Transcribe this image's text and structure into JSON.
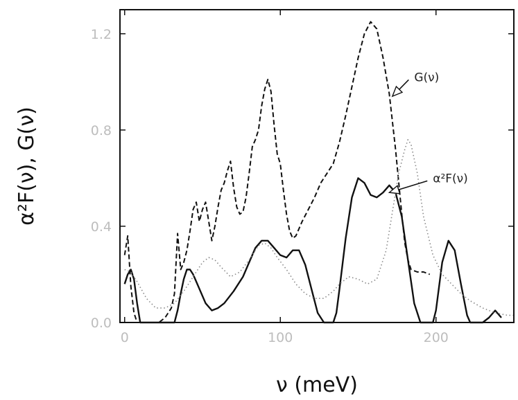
{
  "chart_data": {
    "type": "line",
    "title": "",
    "xlabel": "ν (meV)",
    "ylabel": "α²F(ν), G(ν)",
    "xlim": [
      -3,
      250
    ],
    "ylim": [
      0,
      1.3
    ],
    "x_ticks": [
      0,
      100,
      200
    ],
    "y_ticks": [
      0.0,
      0.4,
      0.8,
      1.2
    ],
    "x_tick_labels": [
      "0",
      "100",
      "200"
    ],
    "y_tick_labels": [
      "0.0",
      "0.4",
      "0.8",
      "1.2"
    ],
    "grid": false,
    "legend": "none",
    "annotations": [
      {
        "text": "G(ν)",
        "series": "G(ν)",
        "x": 186,
        "y": 1.02,
        "arrow_to": [
          172,
          0.94
        ]
      },
      {
        "text": "α²F(ν)",
        "series": "α²F(ν)",
        "x": 198,
        "y": 0.6,
        "arrow_to": [
          170,
          0.54
        ]
      }
    ],
    "series": [
      {
        "name": "G(ν)",
        "style": "dashed",
        "color": "#111111",
        "x": [
          0,
          2,
          4,
          6,
          8,
          10,
          14,
          18,
          22,
          26,
          30,
          32,
          34,
          36,
          38,
          40,
          42,
          44,
          46,
          48,
          50,
          52,
          54,
          56,
          58,
          60,
          62,
          64,
          66,
          68,
          70,
          72,
          74,
          76,
          78,
          80,
          82,
          84,
          86,
          88,
          90,
          92,
          94,
          96,
          98,
          100,
          102,
          104,
          106,
          108,
          110,
          114,
          118,
          122,
          126,
          130,
          134,
          138,
          142,
          146,
          150,
          154,
          158,
          162,
          166,
          170,
          174,
          178,
          180,
          182,
          184,
          188,
          192,
          196
        ],
        "y": [
          0.28,
          0.36,
          0.15,
          0.04,
          0.0,
          0.0,
          0.0,
          0.0,
          0.0,
          0.02,
          0.06,
          0.12,
          0.37,
          0.22,
          0.25,
          0.3,
          0.38,
          0.47,
          0.5,
          0.42,
          0.47,
          0.5,
          0.42,
          0.34,
          0.4,
          0.48,
          0.55,
          0.58,
          0.63,
          0.67,
          0.56,
          0.48,
          0.45,
          0.46,
          0.52,
          0.62,
          0.73,
          0.76,
          0.8,
          0.9,
          0.97,
          1.01,
          0.96,
          0.82,
          0.7,
          0.66,
          0.55,
          0.45,
          0.38,
          0.35,
          0.36,
          0.42,
          0.47,
          0.52,
          0.58,
          0.62,
          0.66,
          0.75,
          0.86,
          0.98,
          1.1,
          1.2,
          1.25,
          1.22,
          1.1,
          0.95,
          0.72,
          0.45,
          0.33,
          0.26,
          0.22,
          0.21,
          0.21,
          0.2
        ]
      },
      {
        "name": "α²F(ν)",
        "style": "solid",
        "color": "#111111",
        "x": [
          0,
          2,
          4,
          6,
          8,
          10,
          32,
          34,
          36,
          38,
          40,
          42,
          44,
          46,
          48,
          52,
          56,
          60,
          64,
          70,
          76,
          80,
          84,
          88,
          92,
          96,
          100,
          104,
          108,
          112,
          116,
          120,
          124,
          128,
          134,
          136,
          138,
          142,
          146,
          150,
          154,
          158,
          162,
          166,
          170,
          174,
          178,
          182,
          186,
          190,
          194,
          198,
          200,
          204,
          208,
          212,
          216,
          220,
          222,
          230,
          234,
          238,
          242
        ],
        "y": [
          0.16,
          0.2,
          0.22,
          0.18,
          0.08,
          0.0,
          0.0,
          0.05,
          0.12,
          0.18,
          0.22,
          0.22,
          0.2,
          0.17,
          0.14,
          0.08,
          0.05,
          0.06,
          0.08,
          0.13,
          0.19,
          0.25,
          0.31,
          0.34,
          0.34,
          0.31,
          0.28,
          0.27,
          0.3,
          0.3,
          0.24,
          0.14,
          0.04,
          0.0,
          0.0,
          0.04,
          0.14,
          0.35,
          0.52,
          0.6,
          0.58,
          0.53,
          0.52,
          0.54,
          0.57,
          0.54,
          0.44,
          0.26,
          0.08,
          0.0,
          0.0,
          0.0,
          0.05,
          0.25,
          0.34,
          0.3,
          0.16,
          0.03,
          0.0,
          0.0,
          0.02,
          0.05,
          0.02
        ]
      },
      {
        "name": "",
        "style": "dotted",
        "color": "#888888",
        "x": [
          0,
          4,
          8,
          14,
          20,
          26,
          32,
          38,
          42,
          46,
          50,
          54,
          58,
          62,
          68,
          74,
          80,
          86,
          90,
          94,
          98,
          104,
          110,
          116,
          122,
          128,
          134,
          138,
          144,
          150,
          156,
          162,
          168,
          172,
          176,
          180,
          182,
          184,
          188,
          192,
          198,
          204,
          210,
          216,
          222,
          230,
          238,
          246,
          250
        ],
        "y": [
          0.22,
          0.21,
          0.17,
          0.1,
          0.06,
          0.06,
          0.08,
          0.13,
          0.17,
          0.21,
          0.25,
          0.27,
          0.26,
          0.23,
          0.19,
          0.21,
          0.26,
          0.32,
          0.33,
          0.31,
          0.27,
          0.22,
          0.16,
          0.12,
          0.1,
          0.1,
          0.13,
          0.16,
          0.19,
          0.18,
          0.16,
          0.18,
          0.3,
          0.46,
          0.62,
          0.72,
          0.76,
          0.74,
          0.62,
          0.44,
          0.28,
          0.2,
          0.16,
          0.12,
          0.09,
          0.06,
          0.04,
          0.03,
          0.03
        ]
      }
    ]
  }
}
